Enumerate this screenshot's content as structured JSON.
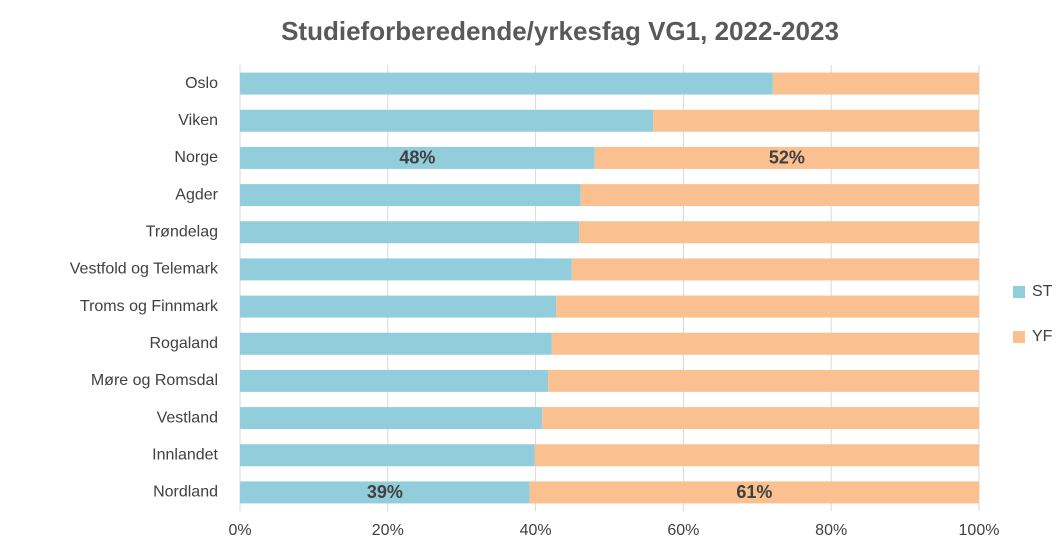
{
  "chart_data": {
    "type": "stacked_barh",
    "title": "Studieforberedende/yrkesfag VG1, 2022-2023",
    "categories": [
      "Oslo",
      "Viken",
      "Norge",
      "Agder",
      "Trøndelag",
      "Vestfold og Telemark",
      "Troms og Finnmark",
      "Rogaland",
      "Møre og Romsdal",
      "Vestland",
      "Innlandet",
      "Nordland"
    ],
    "series": [
      {
        "name": "ST",
        "color": "#92cddc",
        "values": [
          72.1,
          55.9,
          48,
          46.1,
          45.9,
          44.9,
          42.8,
          42.2,
          41.7,
          40.9,
          39.9,
          39.2
        ],
        "value_labels": [
          null,
          null,
          "48%",
          null,
          null,
          null,
          null,
          null,
          null,
          null,
          null,
          "39%"
        ]
      },
      {
        "name": "YF",
        "color": "#fac090",
        "values": [
          27.9,
          44.1,
          52,
          53.9,
          54.1,
          55.1,
          57.2,
          57.8,
          58.3,
          59.1,
          60.1,
          60.8
        ],
        "value_labels": [
          null,
          null,
          "52%",
          null,
          null,
          null,
          null,
          null,
          null,
          null,
          null,
          "61%"
        ]
      }
    ],
    "xlim": [
      0,
      100
    ],
    "xticks": [
      {
        "value": 0,
        "label": "0%"
      },
      {
        "value": 20,
        "label": "20%"
      },
      {
        "value": 40,
        "label": "40%"
      },
      {
        "value": 60,
        "label": "60%"
      },
      {
        "value": 80,
        "label": "80%"
      },
      {
        "value": 100,
        "label": "100%"
      }
    ],
    "grid": true,
    "legend": "right"
  }
}
